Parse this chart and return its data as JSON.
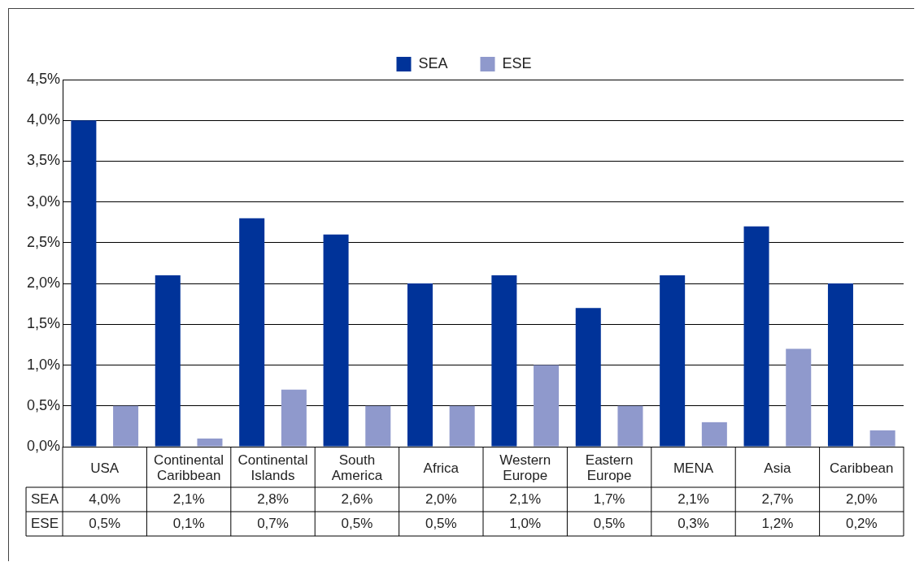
{
  "chart_data": {
    "type": "bar",
    "categories": [
      "USA",
      "Continental Caribbean",
      "Continental Islands",
      "South America",
      "Africa",
      "Western Europe",
      "Eastern Europe",
      "MENA",
      "Asia",
      "Caribbean"
    ],
    "series": [
      {
        "name": "SEA",
        "color": "#003399",
        "values": [
          4.0,
          2.1,
          2.8,
          2.6,
          2.0,
          2.1,
          1.7,
          2.1,
          2.7,
          2.0
        ],
        "value_labels": [
          "4,0%",
          "2,1%",
          "2,8%",
          "2,6%",
          "2,0%",
          "2,1%",
          "1,7%",
          "2,1%",
          "2,7%",
          "2,0%"
        ]
      },
      {
        "name": "ESE",
        "color": "#8f99cc",
        "values": [
          0.5,
          0.1,
          0.7,
          0.5,
          0.5,
          1.0,
          0.5,
          0.3,
          1.2,
          0.2
        ],
        "value_labels": [
          "0,5%",
          "0,1%",
          "0,7%",
          "0,5%",
          "0,5%",
          "1,0%",
          "0,5%",
          "0,3%",
          "1,2%",
          "0,2%"
        ]
      }
    ],
    "ylim": [
      0,
      4.5
    ],
    "yticks": [
      {
        "value": 0,
        "label": "0,0%"
      },
      {
        "value": 0.5,
        "label": "0,5%"
      },
      {
        "value": 1,
        "label": "1,0%"
      },
      {
        "value": 1.5,
        "label": "1,5%"
      },
      {
        "value": 2,
        "label": "2,0%"
      },
      {
        "value": 2.5,
        "label": "2,5%"
      },
      {
        "value": 3,
        "label": "3,0%"
      },
      {
        "value": 3.5,
        "label": "3,5%"
      },
      {
        "value": 4,
        "label": "4,0%"
      },
      {
        "value": 4.5,
        "label": "4,5%"
      }
    ],
    "grid": "y",
    "legend": "top"
  }
}
